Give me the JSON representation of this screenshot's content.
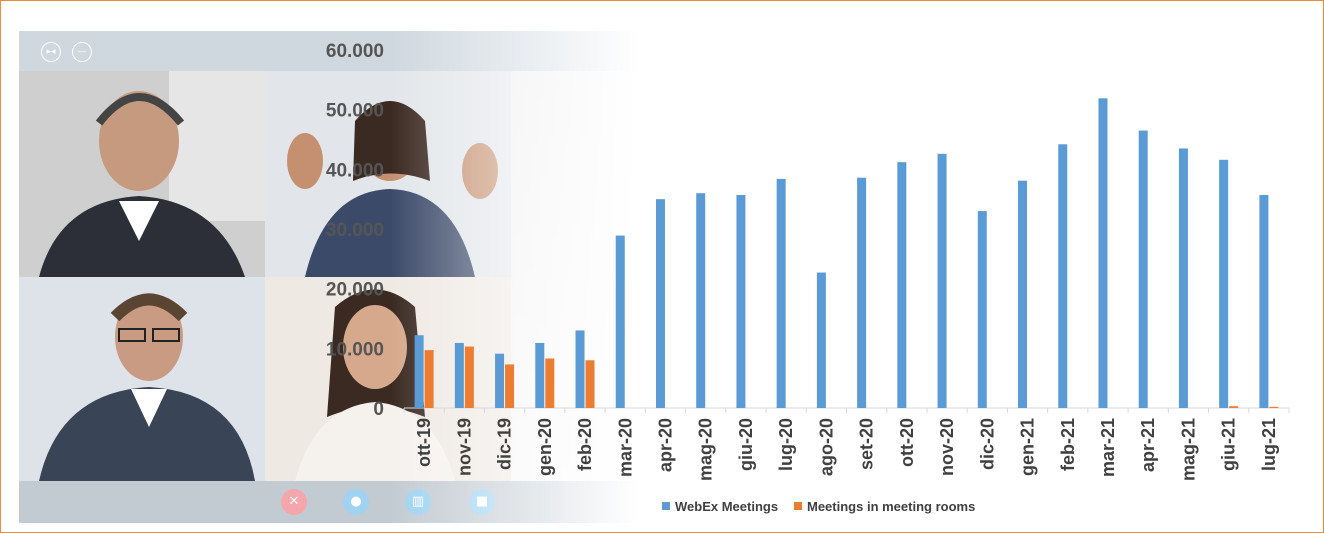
{
  "colors": {
    "webex": "#5b9bd5",
    "rooms": "#ed7d31",
    "frame_border": "#f08a3c",
    "axis": "#d9d9d9"
  },
  "video_call": {
    "window_controls": [
      {
        "name": "fit-icon",
        "glyph": "▸◂"
      },
      {
        "name": "minimize-icon",
        "glyph": "—"
      }
    ],
    "controls": [
      {
        "name": "end-call-button",
        "icon": "close-icon",
        "glyph": "✕",
        "color": "#f4a6ac"
      },
      {
        "name": "chat-button",
        "icon": "chat-bubble-icon",
        "glyph": "●",
        "color": "#9fd3f1"
      },
      {
        "name": "stats-button",
        "icon": "bar-chart-icon",
        "glyph": "▥",
        "color": "#9fd3f1"
      },
      {
        "name": "camera-button",
        "icon": "video-camera-icon",
        "glyph": "■",
        "color": "#9fd3f1"
      }
    ]
  },
  "chart_data": {
    "type": "bar",
    "title": "",
    "xlabel": "",
    "ylabel": "",
    "ylim": [
      0,
      60000
    ],
    "yticks": [
      {
        "value": 0,
        "label": "0"
      },
      {
        "value": 10000,
        "label": "10.000"
      },
      {
        "value": 20000,
        "label": "20.000"
      },
      {
        "value": 30000,
        "label": "30.000"
      },
      {
        "value": 40000,
        "label": "40.000"
      },
      {
        "value": 50000,
        "label": "50.000"
      },
      {
        "value": 60000,
        "label": "60.000"
      }
    ],
    "grid": false,
    "legend_position": "bottom",
    "categories": [
      "ott-19",
      "nov-19",
      "dic-19",
      "gen-20",
      "feb-20",
      "mar-20",
      "apr-20",
      "mag-20",
      "giu-20",
      "lug-20",
      "ago-20",
      "set-20",
      "ott-20",
      "nov-20",
      "dic-20",
      "gen-21",
      "feb-21",
      "mar-21",
      "apr-21",
      "mag-21",
      "giu-21",
      "lug-21"
    ],
    "series": [
      {
        "name": "WebEx Meetings",
        "values": [
          12200,
          10900,
          9100,
          10900,
          13000,
          28900,
          35000,
          36000,
          35700,
          38400,
          22700,
          38600,
          41200,
          42600,
          33000,
          38100,
          44200,
          51900,
          46500,
          43500,
          41600,
          35700
        ]
      },
      {
        "name": "Meetings in meeting rooms",
        "values": [
          9700,
          10300,
          7300,
          8300,
          8000,
          0,
          0,
          0,
          0,
          0,
          0,
          0,
          0,
          0,
          0,
          0,
          0,
          0,
          0,
          0,
          300,
          200
        ]
      }
    ]
  }
}
